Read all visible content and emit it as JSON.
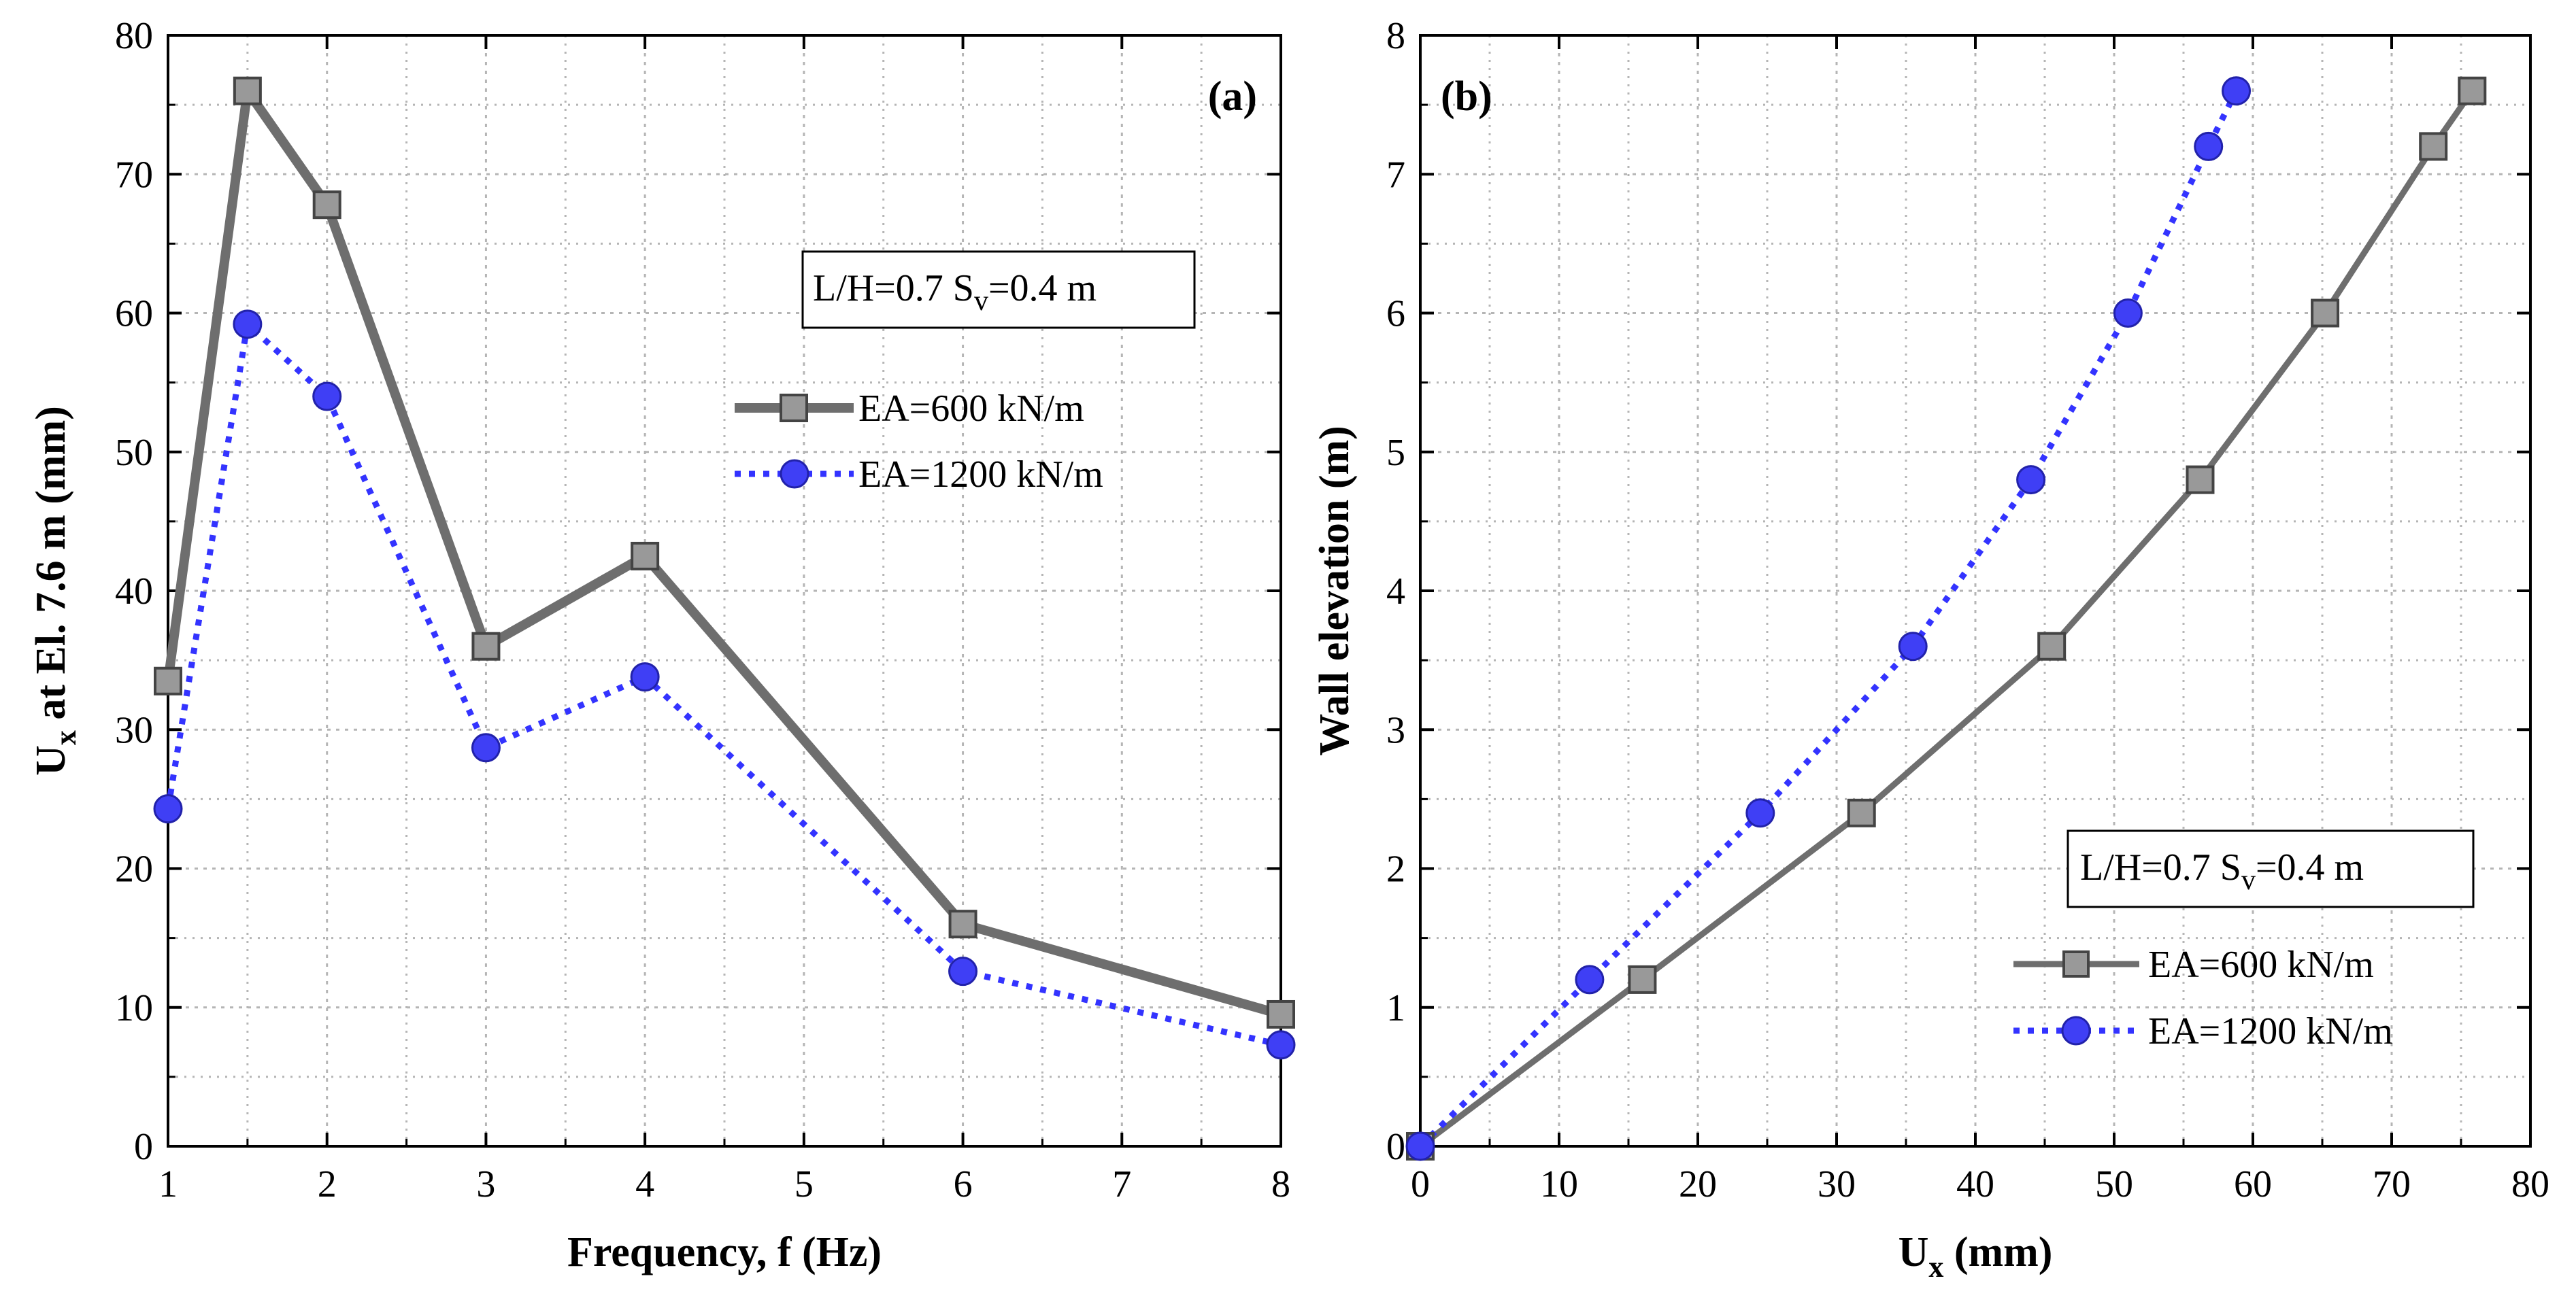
{
  "chart_data": [
    {
      "type": "line",
      "panel_label": "(a)",
      "xlabel_main": "Frequency, f (Hz)",
      "ylabel_main": "U",
      "ylabel_sub": "x",
      "ylabel_rest": " at El. 7.6 m (mm)",
      "xlim": [
        1,
        8
      ],
      "ylim": [
        0,
        80
      ],
      "xticks": [
        1,
        2,
        3,
        4,
        5,
        6,
        7,
        8
      ],
      "yticks": [
        0,
        10,
        20,
        30,
        40,
        50,
        60,
        70,
        80
      ],
      "grid": true,
      "annotation": {
        "main": "L/H=0.7 S",
        "sub": "v",
        "rest": "=0.4 m"
      },
      "legend_position": "upper-right",
      "series": [
        {
          "name": "EA=600 kN/m",
          "marker": "square",
          "style": "solid",
          "color": "#6e6e6e",
          "x": [
            1,
            1.5,
            2,
            3,
            4,
            6,
            8
          ],
          "y": [
            33.5,
            76,
            67.8,
            36,
            42.5,
            16,
            9.5
          ]
        },
        {
          "name": "EA=1200 kN/m",
          "marker": "circle",
          "style": "dotted",
          "color": "#3333ff",
          "x": [
            1,
            1.5,
            2,
            3,
            4,
            6,
            8
          ],
          "y": [
            24.3,
            59.2,
            54,
            28.7,
            33.8,
            12.6,
            7.3
          ]
        }
      ]
    },
    {
      "type": "line",
      "panel_label": "(b)",
      "xlabel_main": "U",
      "xlabel_sub": "x",
      "xlabel_rest": " (mm)",
      "ylabel": "Wall elevation (m)",
      "xlim": [
        0,
        80
      ],
      "ylim": [
        0,
        8
      ],
      "xticks": [
        0,
        10,
        20,
        30,
        40,
        50,
        60,
        70,
        80
      ],
      "yticks": [
        0,
        1,
        2,
        3,
        4,
        5,
        6,
        7,
        8
      ],
      "grid": true,
      "annotation": {
        "main": "L/H=0.7 S",
        "sub": "v",
        "rest": "=0.4 m"
      },
      "legend_position": "lower-right",
      "series": [
        {
          "name": "EA=600 kN/m",
          "marker": "square",
          "style": "solid",
          "color": "#6e6e6e",
          "x": [
            0,
            16,
            31.8,
            45.5,
            56.2,
            65.2,
            73,
            75.8
          ],
          "y": [
            0,
            1.2,
            2.4,
            3.6,
            4.8,
            6,
            7.2,
            7.6
          ]
        },
        {
          "name": "EA=1200 kN/m",
          "marker": "circle",
          "style": "dotted",
          "color": "#3333ff",
          "x": [
            0,
            12.2,
            24.5,
            35.5,
            44,
            51,
            56.8,
            58.8
          ],
          "y": [
            0,
            1.2,
            2.4,
            3.6,
            4.8,
            6,
            7.2,
            7.6
          ]
        }
      ]
    }
  ]
}
